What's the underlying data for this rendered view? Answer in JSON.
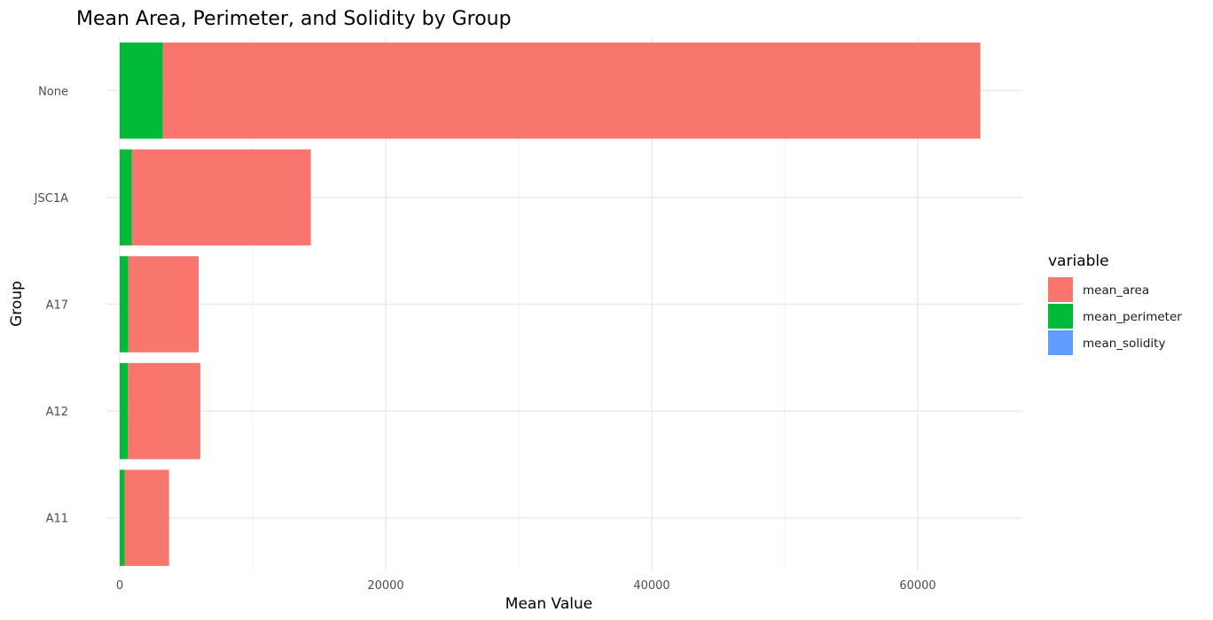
{
  "chart_data": {
    "type": "bar",
    "orientation": "horizontal",
    "stacked": true,
    "title": "Mean Area, Perimeter, and Solidity by Group",
    "xlabel": "Mean Value",
    "ylabel": "Group",
    "categories": [
      "A11",
      "A12",
      "A17",
      "JSC1A",
      "None"
    ],
    "series": [
      {
        "name": "mean_area",
        "color": "#F8766D",
        "values": [
          3340,
          5440,
          5290,
          13450,
          61470
        ]
      },
      {
        "name": "mean_perimeter",
        "color": "#00BA38",
        "values": [
          370,
          620,
          650,
          920,
          3240
        ]
      },
      {
        "name": "mean_solidity",
        "color": "#619CFF",
        "values": [
          0.9,
          0.9,
          0.9,
          0.9,
          0.9
        ]
      }
    ],
    "xlim": [
      -1000,
      68000
    ],
    "xticks": [
      0,
      20000,
      40000,
      60000
    ],
    "xtick_labels": [
      "0",
      "20000",
      "40000",
      "60000"
    ],
    "grid": true,
    "legend": {
      "title": "variable",
      "position": "right"
    }
  }
}
